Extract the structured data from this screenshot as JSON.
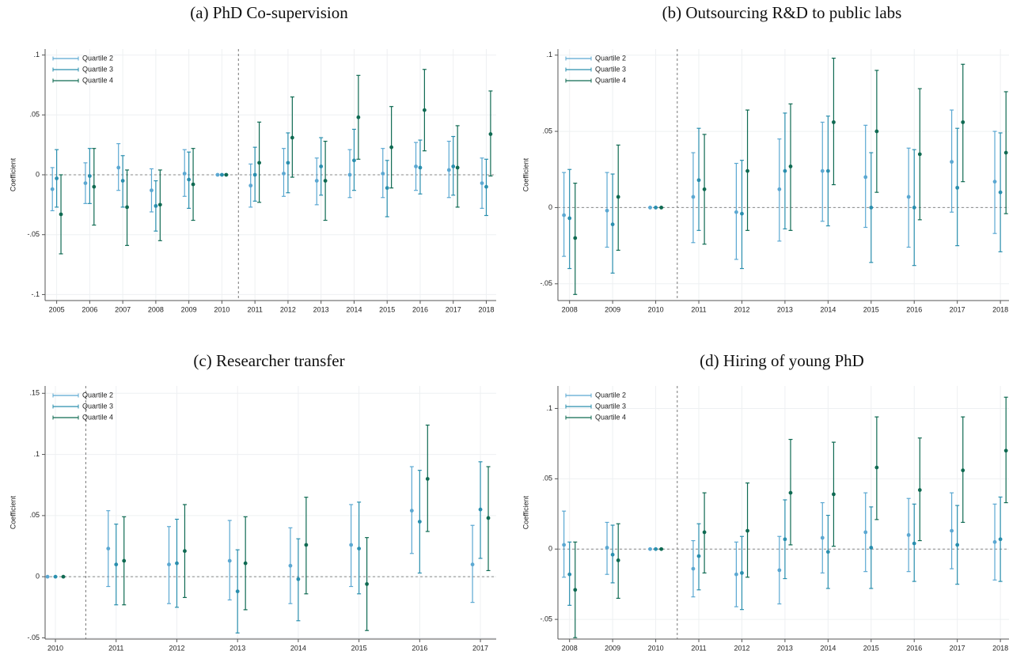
{
  "chart_data": [
    {
      "type": "errorbar",
      "title": "(a)  PhD Co-supervision",
      "ylabel": "Coefficient",
      "x": [
        2005,
        2006,
        2007,
        2008,
        2009,
        2010,
        2011,
        2012,
        2013,
        2014,
        2015,
        2016,
        2017,
        2018
      ],
      "xlim": [
        2004.65,
        2018.3
      ],
      "ylim": [
        -0.105,
        0.105
      ],
      "yticks": [
        {
          "value": -0.1,
          "label": "-.1"
        },
        {
          "value": -0.05,
          "label": "-.05"
        },
        0,
        {
          "value": 0.05,
          "label": ".05"
        },
        {
          "value": 0.1,
          "label": ".1"
        }
      ],
      "grid": true,
      "legend": "top-left",
      "reference_lines": {
        "x": 2010.5,
        "y": 0
      },
      "series": [
        {
          "name": "Quartile 2",
          "color": "#5ba8d2",
          "values": [
            -0.012,
            -0.007,
            0.006,
            -0.013,
            0.001,
            0,
            -0.009,
            0.001,
            -0.005,
            0.0,
            0.001,
            0.007,
            0.004,
            -0.007
          ],
          "lower": [
            -0.03,
            -0.024,
            -0.013,
            -0.031,
            -0.018,
            0,
            -0.027,
            -0.018,
            -0.025,
            -0.019,
            -0.019,
            -0.013,
            -0.019,
            -0.028
          ],
          "upper": [
            0.006,
            0.01,
            0.026,
            0.005,
            0.021,
            0,
            0.009,
            0.022,
            0.014,
            0.021,
            0.022,
            0.027,
            0.028,
            0.014
          ]
        },
        {
          "name": "Quartile 3",
          "color": "#2a8fae",
          "values": [
            -0.003,
            -0.001,
            -0.005,
            -0.026,
            -0.004,
            0,
            0.0,
            0.01,
            0.007,
            0.012,
            -0.011,
            0.006,
            0.007,
            -0.01
          ],
          "lower": [
            -0.027,
            -0.024,
            -0.027,
            -0.047,
            -0.028,
            0,
            -0.022,
            -0.015,
            -0.017,
            -0.013,
            -0.035,
            -0.016,
            -0.017,
            -0.034
          ],
          "upper": [
            0.021,
            0.022,
            0.016,
            -0.005,
            0.019,
            0,
            0.023,
            0.035,
            0.031,
            0.038,
            0.012,
            0.029,
            0.032,
            0.013
          ]
        },
        {
          "name": "Quartile 4",
          "color": "#0f6a52",
          "values": [
            -0.033,
            -0.01,
            -0.027,
            -0.025,
            -0.008,
            0,
            0.01,
            0.031,
            -0.005,
            0.048,
            0.023,
            0.054,
            0.006,
            0.034
          ],
          "lower": [
            -0.066,
            -0.042,
            -0.059,
            -0.055,
            -0.038,
            0,
            -0.023,
            -0.002,
            -0.038,
            0.013,
            -0.011,
            0.02,
            -0.027,
            -0.001
          ],
          "upper": [
            0.0,
            0.022,
            0.004,
            0.004,
            0.022,
            0,
            0.044,
            0.065,
            0.028,
            0.083,
            0.057,
            0.088,
            0.041,
            0.07
          ]
        }
      ]
    },
    {
      "type": "errorbar",
      "title": "(b)  Outsourcing R&D to public labs",
      "ylabel": "Coefficient",
      "x": [
        2008,
        2009,
        2010,
        2011,
        2012,
        2013,
        2014,
        2015,
        2016,
        2017,
        2018
      ],
      "xlim": [
        2007.73,
        2018.2
      ],
      "ylim": [
        -0.061,
        0.104
      ],
      "yticks": [
        {
          "value": -0.05,
          "label": "-.05"
        },
        0,
        {
          "value": 0.05,
          "label": ".05"
        },
        {
          "value": 0.1,
          "label": ".1"
        }
      ],
      "grid": true,
      "legend": "top-left",
      "reference_lines": {
        "x": 2010.5,
        "y": 0
      },
      "series": [
        {
          "name": "Quartile 2",
          "color": "#5ba8d2",
          "values": [
            -0.005,
            -0.002,
            0,
            0.007,
            -0.003,
            0.012,
            0.024,
            0.02,
            0.007,
            0.03,
            0.017
          ],
          "lower": [
            -0.032,
            -0.026,
            0,
            -0.023,
            -0.034,
            -0.022,
            -0.009,
            -0.013,
            -0.026,
            -0.003,
            -0.017
          ],
          "upper": [
            0.023,
            0.023,
            0,
            0.036,
            0.029,
            0.045,
            0.056,
            0.054,
            0.039,
            0.064,
            0.05
          ]
        },
        {
          "name": "Quartile 3",
          "color": "#2a8fae",
          "values": [
            -0.007,
            -0.011,
            0,
            0.018,
            -0.004,
            0.024,
            0.024,
            0.0,
            0.0,
            0.013,
            0.01
          ],
          "lower": [
            -0.04,
            -0.043,
            0,
            -0.015,
            -0.04,
            -0.014,
            -0.012,
            -0.036,
            -0.038,
            -0.025,
            -0.029
          ],
          "upper": [
            0.025,
            0.022,
            0,
            0.052,
            0.031,
            0.062,
            0.06,
            0.036,
            0.038,
            0.052,
            0.049
          ]
        },
        {
          "name": "Quartile 4",
          "color": "#0f6a52",
          "values": [
            -0.02,
            0.007,
            0,
            0.012,
            0.024,
            0.027,
            0.056,
            0.05,
            0.035,
            0.056,
            0.036
          ],
          "lower": [
            -0.057,
            -0.028,
            0,
            -0.024,
            -0.015,
            -0.015,
            0.015,
            0.01,
            -0.008,
            0.017,
            -0.004
          ],
          "upper": [
            0.016,
            0.041,
            0,
            0.048,
            0.064,
            0.068,
            0.098,
            0.09,
            0.078,
            0.094,
            0.076
          ]
        }
      ]
    },
    {
      "type": "errorbar",
      "title": "(c)  Researcher transfer",
      "ylabel": "Coefficient",
      "x": [
        2010,
        2011,
        2012,
        2013,
        2014,
        2015,
        2016,
        2017
      ],
      "xlim": [
        2009.83,
        2017.26
      ],
      "ylim": [
        -0.051,
        0.156
      ],
      "yticks": [
        {
          "value": -0.05,
          "label": "-.05"
        },
        0,
        {
          "value": 0.05,
          "label": ".05"
        },
        {
          "value": 0.1,
          "label": ".1"
        },
        {
          "value": 0.15,
          "label": ".15"
        }
      ],
      "grid": true,
      "legend": "top-left",
      "reference_lines": {
        "x": 2010.5,
        "y": 0
      },
      "series": [
        {
          "name": "Quartile 2",
          "color": "#5ba8d2",
          "values": [
            0,
            0.023,
            0.01,
            0.013,
            0.009,
            0.026,
            0.054,
            0.01
          ],
          "lower": [
            0,
            -0.008,
            -0.022,
            -0.019,
            -0.022,
            -0.008,
            0.019,
            -0.021
          ],
          "upper": [
            0,
            0.054,
            0.041,
            0.046,
            0.04,
            0.059,
            0.09,
            0.042
          ]
        },
        {
          "name": "Quartile 3",
          "color": "#2a8fae",
          "values": [
            0,
            0.01,
            0.011,
            -0.012,
            -0.002,
            0.023,
            0.045,
            0.055
          ],
          "lower": [
            0,
            -0.023,
            -0.025,
            -0.046,
            -0.036,
            -0.014,
            0.003,
            0.015
          ],
          "upper": [
            0,
            0.043,
            0.047,
            0.022,
            0.031,
            0.061,
            0.087,
            0.094
          ]
        },
        {
          "name": "Quartile 4",
          "color": "#0f6a52",
          "values": [
            0,
            0.013,
            0.021,
            0.011,
            0.026,
            -0.006,
            0.08,
            0.048
          ],
          "lower": [
            0,
            -0.023,
            -0.017,
            -0.027,
            -0.014,
            -0.044,
            0.037,
            0.005
          ],
          "upper": [
            0,
            0.049,
            0.059,
            0.049,
            0.065,
            0.032,
            0.124,
            0.09
          ]
        }
      ]
    },
    {
      "type": "errorbar",
      "title": "(d)  Hiring of young PhD",
      "ylabel": "Coefficient",
      "x": [
        2008,
        2009,
        2010,
        2011,
        2012,
        2013,
        2014,
        2015,
        2016,
        2017,
        2018
      ],
      "xlim": [
        2007.73,
        2018.2
      ],
      "ylim": [
        -0.064,
        0.116
      ],
      "yticks": [
        {
          "value": -0.05,
          "label": "-.05"
        },
        0,
        {
          "value": 0.05,
          "label": ".05"
        },
        {
          "value": 0.1,
          "label": ".1"
        }
      ],
      "grid": true,
      "legend": "top-left",
      "reference_lines": {
        "x": 2010.5,
        "y": 0
      },
      "series": [
        {
          "name": "Quartile 2",
          "color": "#5ba8d2",
          "values": [
            0.003,
            0.001,
            0,
            -0.014,
            -0.018,
            -0.015,
            0.008,
            0.012,
            0.01,
            0.013,
            0.005
          ],
          "lower": [
            -0.02,
            -0.018,
            0,
            -0.034,
            -0.041,
            -0.039,
            -0.017,
            -0.016,
            -0.016,
            -0.014,
            -0.022
          ],
          "upper": [
            0.027,
            0.019,
            0,
            0.006,
            0.005,
            0.009,
            0.033,
            0.04,
            0.036,
            0.04,
            0.032
          ]
        },
        {
          "name": "Quartile 3",
          "color": "#2a8fae",
          "values": [
            -0.018,
            -0.004,
            0,
            -0.005,
            -0.017,
            0.007,
            -0.002,
            0.001,
            0.004,
            0.003,
            0.007
          ],
          "lower": [
            -0.04,
            -0.024,
            0,
            -0.029,
            -0.043,
            -0.021,
            -0.028,
            -0.028,
            -0.023,
            -0.025,
            -0.023
          ],
          "upper": [
            0.005,
            0.017,
            0,
            0.018,
            0.009,
            0.035,
            0.024,
            0.03,
            0.032,
            0.031,
            0.037
          ]
        },
        {
          "name": "Quartile 4",
          "color": "#0f6a52",
          "values": [
            -0.029,
            -0.008,
            0,
            0.012,
            0.013,
            0.04,
            0.039,
            0.058,
            0.042,
            0.056,
            0.07
          ],
          "lower": [
            -0.063,
            -0.035,
            0,
            -0.017,
            -0.02,
            0.003,
            0.002,
            0.021,
            0.006,
            0.019,
            0.033
          ],
          "upper": [
            0.005,
            0.018,
            0,
            0.04,
            0.047,
            0.078,
            0.076,
            0.094,
            0.079,
            0.094,
            0.108
          ]
        }
      ]
    }
  ]
}
